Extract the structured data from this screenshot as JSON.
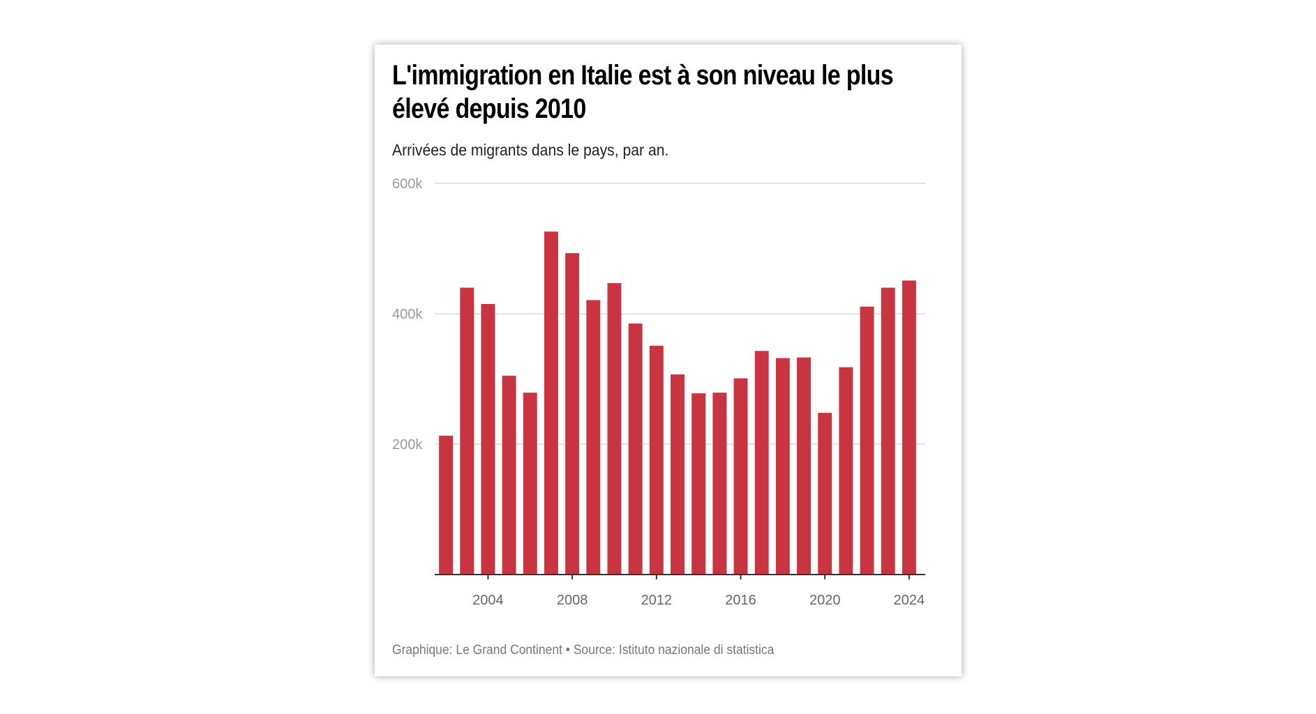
{
  "chart_data": {
    "type": "bar",
    "title": "L'immigration en Italie est à son niveau le plus élevé depuis 2010",
    "subtitle": "Arrivées de migrants dans le pays, par an.",
    "categories": [
      2002,
      2003,
      2004,
      2005,
      2006,
      2007,
      2008,
      2009,
      2010,
      2011,
      2012,
      2013,
      2014,
      2015,
      2016,
      2017,
      2018,
      2019,
      2020,
      2021,
      2022,
      2023,
      2024
    ],
    "values": [
      213000,
      440000,
      415000,
      305000,
      279000,
      526000,
      493000,
      421000,
      447000,
      385000,
      351000,
      307000,
      278000,
      279000,
      301000,
      343000,
      332000,
      333000,
      248000,
      318000,
      411000,
      440000,
      451000
    ],
    "xlabel": "",
    "ylabel": "",
    "ylim": [
      0,
      600000
    ],
    "yticks": [
      {
        "value": 200000,
        "label": "200k"
      },
      {
        "value": 400000,
        "label": "400k"
      },
      {
        "value": 600000,
        "label": "600k"
      }
    ],
    "xticks": [
      {
        "value": 2004,
        "label": "2004"
      },
      {
        "value": 2008,
        "label": "2008"
      },
      {
        "value": 2012,
        "label": "2012"
      },
      {
        "value": 2016,
        "label": "2016"
      },
      {
        "value": 2020,
        "label": "2020"
      },
      {
        "value": 2024,
        "label": "2024"
      }
    ],
    "grid": true,
    "bar_color": "#c93441",
    "footer": "Graphique: Le Grand Continent • Source: Istituto nazionale di statistica"
  }
}
